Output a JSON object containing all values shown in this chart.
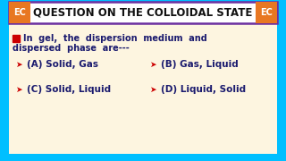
{
  "title": "QUESTION ON THE COLLOIDAL STATE",
  "title_fontsize": 8.5,
  "question_line1": "In  gel,  the  dispersion  medium  and",
  "question_line2": "dispersed  phase  are---",
  "options": [
    {
      "label": "(A) Solid, Gas"
    },
    {
      "label": "(B) Gas, Liquid"
    },
    {
      "label": "(C) Solid, Liquid"
    },
    {
      "label": "(D) Liquid, Solid"
    }
  ],
  "bg_outer": "#00BFFF",
  "bg_inner": "#FDF5E0",
  "title_bg": "#FFFFFF",
  "title_border": "#6B2FA0",
  "ec_bg": "#E87722",
  "ec_text": "#FFFFFF",
  "question_color": "#1A1A6E",
  "option_color": "#1A1A6E",
  "arrow_color": "#CC0000",
  "checkbox_color": "#CC0000"
}
